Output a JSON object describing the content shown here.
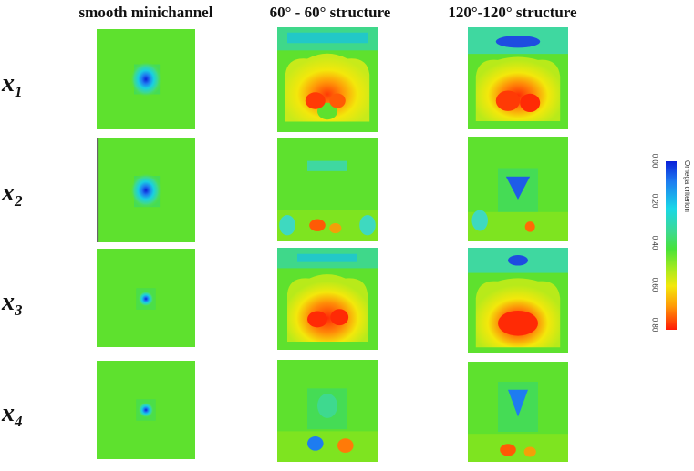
{
  "columns": [
    {
      "label": "smooth minichannel"
    },
    {
      "label": "60° - 60° structure"
    },
    {
      "label": "120°-120° structure"
    }
  ],
  "rows": [
    {
      "label": "x",
      "sub": "1"
    },
    {
      "label": "x",
      "sub": "2"
    },
    {
      "label": "x",
      "sub": "3"
    },
    {
      "label": "x",
      "sub": "4"
    }
  ],
  "colorbar": {
    "title": "Omega criterion",
    "ticks": [
      "0.00",
      "0.20",
      "0.40",
      "0.60",
      "0.80"
    ]
  },
  "colors": {
    "background_field": "#5ee12e",
    "low": "#0a1fd8",
    "high": "#ff1a05"
  }
}
